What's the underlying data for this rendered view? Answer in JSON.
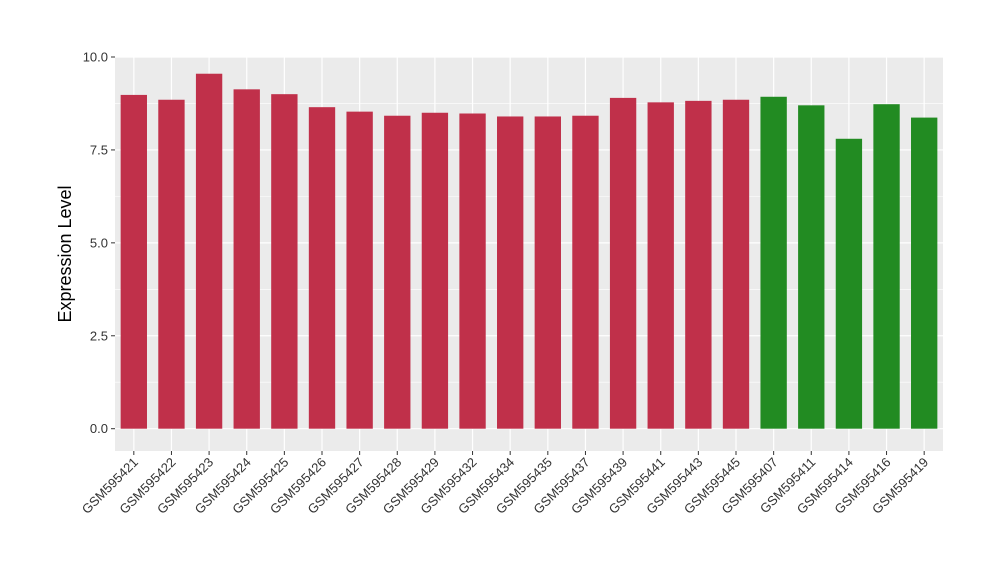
{
  "chart_data": {
    "type": "bar",
    "xlabel": "",
    "ylabel": "Expression Level",
    "ylim": [
      -0.6,
      10.0
    ],
    "yticks": [
      0.0,
      2.5,
      5.0,
      7.5,
      10.0
    ],
    "ytick_labels": [
      "0.0",
      "2.5",
      "5.0",
      "7.5",
      "10.0"
    ],
    "grid": true,
    "legend": "none",
    "panel_background": "#EBEBEB",
    "grid_color": "#FFFFFF",
    "categories": [
      "GSM595421",
      "GSM595422",
      "GSM595423",
      "GSM595424",
      "GSM595425",
      "GSM595426",
      "GSM595427",
      "GSM595428",
      "GSM595429",
      "GSM595432",
      "GSM595434",
      "GSM595435",
      "GSM595437",
      "GSM595439",
      "GSM595441",
      "GSM595443",
      "GSM595445",
      "GSM595407",
      "GSM595411",
      "GSM595414",
      "GSM595416",
      "GSM595419"
    ],
    "values": [
      8.98,
      8.85,
      9.55,
      9.13,
      9.0,
      8.65,
      8.53,
      8.42,
      8.5,
      8.48,
      8.4,
      8.4,
      8.42,
      8.9,
      8.78,
      8.82,
      8.85,
      8.93,
      8.7,
      7.8,
      8.73,
      8.37
    ],
    "colors": [
      "#C0304A",
      "#C0304A",
      "#C0304A",
      "#C0304A",
      "#C0304A",
      "#C0304A",
      "#C0304A",
      "#C0304A",
      "#C0304A",
      "#C0304A",
      "#C0304A",
      "#C0304A",
      "#C0304A",
      "#C0304A",
      "#C0304A",
      "#C0304A",
      "#C0304A",
      "#228B22",
      "#228B22",
      "#228B22",
      "#228B22",
      "#228B22"
    ]
  }
}
